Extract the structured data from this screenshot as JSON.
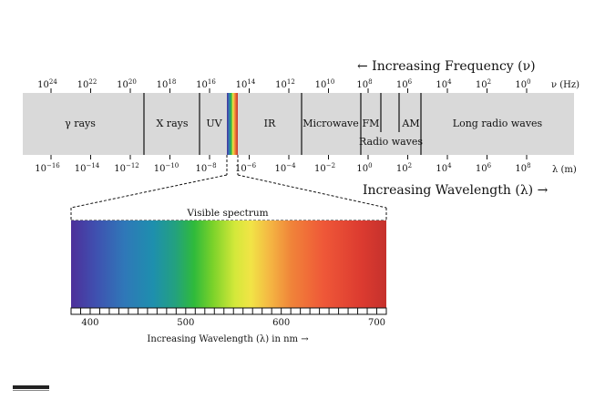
{
  "frequency_header": "← Increasing Frequency (ν)",
  "wavelength_header": "Increasing Wavelength (λ) →",
  "frequency_unit": "ν (Hz)",
  "wavelength_unit": "λ (m)",
  "frequency_ticks": [
    {
      "base": "10",
      "exp": "24"
    },
    {
      "base": "10",
      "exp": "22"
    },
    {
      "base": "10",
      "exp": "20"
    },
    {
      "base": "10",
      "exp": "18"
    },
    {
      "base": "10",
      "exp": "16"
    },
    {
      "base": "10",
      "exp": "14"
    },
    {
      "base": "10",
      "exp": "12"
    },
    {
      "base": "10",
      "exp": "10"
    },
    {
      "base": "10",
      "exp": "8"
    },
    {
      "base": "10",
      "exp": "6"
    },
    {
      "base": "10",
      "exp": "4"
    },
    {
      "base": "10",
      "exp": "2"
    },
    {
      "base": "10",
      "exp": "0"
    }
  ],
  "wavelength_ticks": [
    {
      "base": "10",
      "exp": "−16"
    },
    {
      "base": "10",
      "exp": "−14"
    },
    {
      "base": "10",
      "exp": "−12"
    },
    {
      "base": "10",
      "exp": "−10"
    },
    {
      "base": "10",
      "exp": "−8"
    },
    {
      "base": "10",
      "exp": "−6"
    },
    {
      "base": "10",
      "exp": "−4"
    },
    {
      "base": "10",
      "exp": "−2"
    },
    {
      "base": "10",
      "exp": "0"
    },
    {
      "base": "10",
      "exp": "2"
    },
    {
      "base": "10",
      "exp": "4"
    },
    {
      "base": "10",
      "exp": "6"
    },
    {
      "base": "10",
      "exp": "8"
    }
  ],
  "regions": {
    "gamma": "γ rays",
    "xray": "X rays",
    "uv": "UV",
    "ir": "IR",
    "microwave": "Microwave",
    "fm": "FM",
    "am": "AM",
    "radio": "Radio waves",
    "long_radio": "Long radio waves"
  },
  "visible": {
    "title": "Visible spectrum",
    "scale_labels": [
      "400",
      "500",
      "600",
      "700"
    ],
    "axis_label": "Increasing Wavelength (λ) in nm →",
    "gradient_colors": [
      "#4d2f9a",
      "#3f51b0",
      "#2f78b8",
      "#1e8fae",
      "#23a17f",
      "#2fba3b",
      "#7bd22a",
      "#d4e83a",
      "#f1e446",
      "#f4b743",
      "#f08339",
      "#ef5838",
      "#dc3b30",
      "#c5312c"
    ]
  }
}
